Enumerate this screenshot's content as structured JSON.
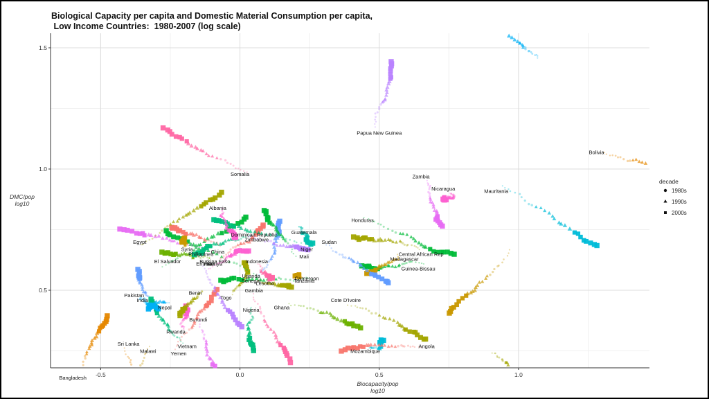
{
  "chart_data": {
    "type": "scatter",
    "title": "Biological Capacity per capita and Domestic Material Consumption per capita,",
    "subtitle": " Low Income Countries:  1980-2007 (log scale)",
    "xlabel": [
      "Biocapacity/pop",
      "log10"
    ],
    "ylabel": [
      "DMC/pop",
      "log10"
    ],
    "xlim": [
      -0.68,
      1.47
    ],
    "ylim": [
      0.18,
      1.56
    ],
    "xticks": [
      -0.5,
      0.0,
      0.5,
      1.0
    ],
    "xtick_labels": [
      "-0.5",
      "0.0",
      "0.5",
      "1.0"
    ],
    "yticks": [
      0.5,
      1.0,
      1.5
    ],
    "ytick_labels": [
      "0.5",
      "1.0",
      "1.5"
    ],
    "grid": true,
    "legend": {
      "title": "decade",
      "position": "right",
      "items": [
        {
          "label": "1980s",
          "shape": "circle"
        },
        {
          "label": "1990s",
          "shape": "triangle"
        },
        {
          "label": "2000s",
          "shape": "square"
        }
      ]
    },
    "colors": [
      "#F8766D",
      "#E58700",
      "#C99800",
      "#A3A500",
      "#6BB100",
      "#00BA38",
      "#00BF7D",
      "#00C0AF",
      "#00BCD8",
      "#00B0F6",
      "#619CFF",
      "#B983FF",
      "#E76BF3",
      "#FD61D1",
      "#FF67A4"
    ],
    "countries": [
      {
        "name": "Bangladesh",
        "x": -0.6,
        "y": 0.14,
        "c": 1
      },
      {
        "name": "Sri Lanka",
        "x": -0.4,
        "y": 0.28,
        "c": 1
      },
      {
        "name": "Malawi",
        "x": -0.33,
        "y": 0.25,
        "c": 2
      },
      {
        "name": "Vietnam",
        "x": -0.19,
        "y": 0.27,
        "c": 6
      },
      {
        "name": "Yemen",
        "x": -0.22,
        "y": 0.24,
        "c": 0
      },
      {
        "name": "Rwanda",
        "x": -0.23,
        "y": 0.33,
        "c": 13
      },
      {
        "name": "Burundi",
        "x": -0.15,
        "y": 0.38,
        "c": 12
      },
      {
        "name": "Nepal",
        "x": -0.27,
        "y": 0.43,
        "c": 9
      },
      {
        "name": "India",
        "x": -0.35,
        "y": 0.46,
        "c": 10
      },
      {
        "name": "Pakistan",
        "x": -0.38,
        "y": 0.48,
        "c": 9
      },
      {
        "name": "Benin",
        "x": -0.16,
        "y": 0.49,
        "c": 3
      },
      {
        "name": "Togo",
        "x": -0.05,
        "y": 0.47,
        "c": 3
      },
      {
        "name": "Nigeria",
        "x": 0.04,
        "y": 0.42,
        "c": 6
      },
      {
        "name": "Gambia",
        "x": 0.05,
        "y": 0.5,
        "c": 14
      },
      {
        "name": "Ghana",
        "x": 0.15,
        "y": 0.43,
        "c": 4
      },
      {
        "name": "Senegal",
        "x": 0.04,
        "y": 0.54,
        "c": 10
      },
      {
        "name": "Lesotho",
        "x": 0.09,
        "y": 0.53,
        "c": 3
      },
      {
        "name": "Uganda",
        "x": 0.04,
        "y": 0.56,
        "c": 5
      },
      {
        "name": "Tanzania",
        "x": 0.23,
        "y": 0.54,
        "c": 2
      },
      {
        "name": "Cameroon",
        "x": 0.24,
        "y": 0.55,
        "c": 5
      },
      {
        "name": "Cote D'Ivoire",
        "x": 0.38,
        "y": 0.46,
        "c": 3
      },
      {
        "name": "El Salvador",
        "x": -0.26,
        "y": 0.62,
        "c": 5
      },
      {
        "name": "Eritrea",
        "x": -0.13,
        "y": 0.61,
        "c": 11
      },
      {
        "name": "Kenya",
        "x": -0.09,
        "y": 0.61,
        "c": 0
      },
      {
        "name": "Haiti",
        "x": -0.11,
        "y": 0.61,
        "c": 13
      },
      {
        "name": "Burkina Faso",
        "x": -0.09,
        "y": 0.62,
        "c": 4
      },
      {
        "name": "Indonesia",
        "x": 0.06,
        "y": 0.62,
        "c": 14
      },
      {
        "name": "Philippines",
        "x": -0.14,
        "y": 0.65,
        "c": 12
      },
      {
        "name": "China",
        "x": -0.08,
        "y": 0.66,
        "c": 0
      },
      {
        "name": "Syria",
        "x": -0.19,
        "y": 0.67,
        "c": 2
      },
      {
        "name": "Egypt",
        "x": -0.36,
        "y": 0.7,
        "c": 3
      },
      {
        "name": "Mali",
        "x": 0.23,
        "y": 0.64,
        "c": 5
      },
      {
        "name": "Niger",
        "x": 0.24,
        "y": 0.67,
        "c": 6
      },
      {
        "name": "Guinea-Bissau",
        "x": 0.64,
        "y": 0.59,
        "c": 5
      },
      {
        "name": "Madagascar",
        "x": 0.59,
        "y": 0.63,
        "c": 2
      },
      {
        "name": "Central African Rep",
        "x": 0.65,
        "y": 0.65,
        "c": 3
      },
      {
        "name": "Sudan",
        "x": 0.32,
        "y": 0.7,
        "c": 10
      },
      {
        "name": "Guatemala",
        "x": 0.23,
        "y": 0.74,
        "c": 7
      },
      {
        "name": "Dominican Republic",
        "x": 0.05,
        "y": 0.73,
        "c": 6
      },
      {
        "name": "Zimbabwe",
        "x": 0.06,
        "y": 0.71,
        "c": 11
      },
      {
        "name": "Albania",
        "x": -0.08,
        "y": 0.84,
        "c": 13
      },
      {
        "name": "Honduras",
        "x": 0.44,
        "y": 0.79,
        "c": 5
      },
      {
        "name": "Somalia",
        "x": 0.0,
        "y": 0.98,
        "c": 14
      },
      {
        "name": "Zambia",
        "x": 0.65,
        "y": 0.97,
        "c": 12
      },
      {
        "name": "Nicaragua",
        "x": 0.73,
        "y": 0.92,
        "c": 13
      },
      {
        "name": "Mauritania",
        "x": 0.92,
        "y": 0.91,
        "c": 8
      },
      {
        "name": "Papua New Guinea",
        "x": 0.5,
        "y": 1.15,
        "c": 11
      },
      {
        "name": "Mozambique",
        "x": 0.45,
        "y": 0.25,
        "c": 8
      },
      {
        "name": "Angola",
        "x": 0.67,
        "y": 0.27,
        "c": 0
      },
      {
        "name": "Bolivia",
        "x": 1.28,
        "y": 1.07,
        "c": 1
      },
      {
        "name": "",
        "x": 1.07,
        "y": 1.47,
        "c": 9
      },
      {
        "name": "",
        "x": 0.97,
        "y": 0.66,
        "c": 2
      },
      {
        "name": "",
        "x": 0.92,
        "y": 0.23,
        "c": 3
      }
    ]
  }
}
